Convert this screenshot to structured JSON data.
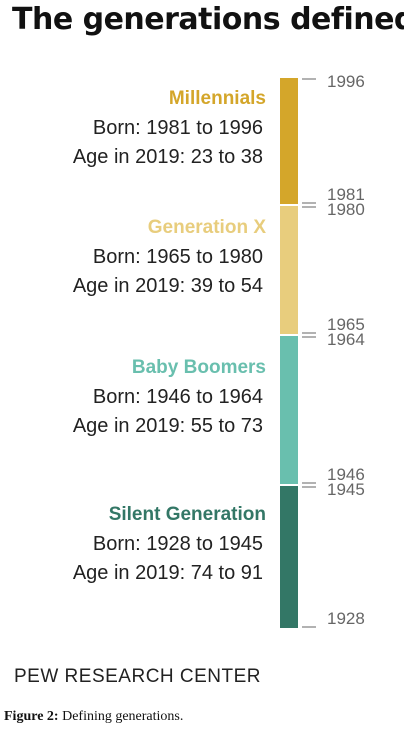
{
  "title": "The generations defined",
  "source": "PEW RESEARCH CENTER",
  "caption": {
    "label": "Figure 2:",
    "text": " Defining generations."
  },
  "colors": {
    "millennials": "#d4a62a",
    "generation_x": "#e8cd7d",
    "baby_boomers": "#69bfae",
    "silent_generation": "#337766",
    "tick": "#999999",
    "tick_label": "#666666",
    "text": "#222222"
  },
  "chart_data": {
    "type": "bar",
    "orientation": "vertical-stacked-ranges",
    "title": "The generations defined",
    "axis": {
      "ticks": [
        1996,
        1981,
        1980,
        1965,
        1964,
        1946,
        1945,
        1928
      ]
    },
    "series": [
      {
        "name": "Millennials",
        "start": 1981,
        "end": 1996,
        "born": "Born: 1981 to 1996",
        "age": "Age in 2019: 23 to 38",
        "color": "#d4a62a"
      },
      {
        "name": "Generation X",
        "start": 1965,
        "end": 1980,
        "born": "Born: 1965 to 1980",
        "age": "Age in 2019: 39 to 54",
        "color": "#e8cd7d"
      },
      {
        "name": "Baby Boomers",
        "start": 1946,
        "end": 1964,
        "born": "Born: 1946 to 1964",
        "age": "Age in 2019: 55 to 73",
        "color": "#69bfae"
      },
      {
        "name": "Silent Generation",
        "start": 1928,
        "end": 1945,
        "born": "Born: 1928 to 1945",
        "age": "Age in 2019: 74 to 91",
        "color": "#337766"
      }
    ]
  }
}
